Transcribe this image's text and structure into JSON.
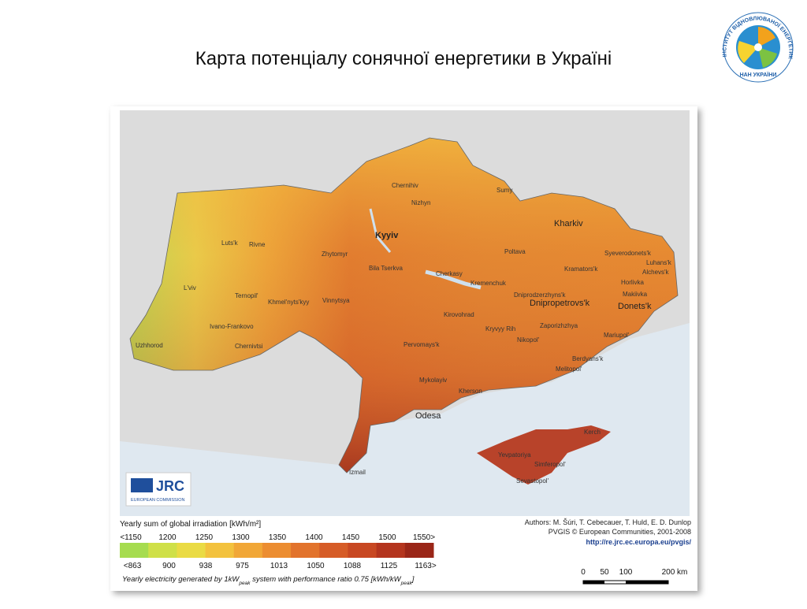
{
  "title": "Карта потенціалу сонячної енергетики в Україні",
  "logo": {
    "ring_text": "ІНСТИТУТ ВІДНОВЛЮВАНОЇ ЕНЕРГЕТИКИ",
    "bottom_text": "НАН УКРАЇНИ"
  },
  "map": {
    "capital": "Kyyiv",
    "major_cities": [
      "Kharkiv",
      "Dnipropetrovs'k",
      "Donets'k",
      "Odesa"
    ],
    "cities": [
      "Chernihiv",
      "Nizhyn",
      "Sumy",
      "Luts'k",
      "Rivne",
      "Zhytomyr",
      "Bila Tserkva",
      "Poltava",
      "Syeverodonets'k",
      "Luhans'k",
      "Alchevs'k",
      "Kramators'k",
      "Horlivka",
      "Makiivka",
      "L'viv",
      "Ternopil'",
      "Khmel'nyts'kyy",
      "Vinnytsya",
      "Cherkasy",
      "Kremenchuk",
      "Dniprodzerzhyns'k",
      "Ivano-Frankovo",
      "Kirovohrad",
      "Kryvyy Rih",
      "Zaporizhzhya",
      "Uzhhorod",
      "Chernivtsi",
      "Nikopol'",
      "Pervomays'k",
      "Mariupol'",
      "Berdyans'k",
      "Melitopol'",
      "Mykolayiv",
      "Kherson",
      "Kerch",
      "Yevpatoriya",
      "Simferopol'",
      "Sevastopol'",
      "Izmail"
    ],
    "badge": {
      "name": "JRC",
      "sub": "EUROPEAN COMMISSION"
    }
  },
  "legend": {
    "title": "Yearly sum of global irradiation [kWh/m²]",
    "irradiation_labels": [
      "<1150",
      "1200",
      "1250",
      "1300",
      "1350",
      "1400",
      "1450",
      "1500",
      "1550>"
    ],
    "electricity_labels": [
      "<863",
      "900",
      "938",
      "975",
      "1013",
      "1050",
      "1088",
      "1125",
      "1163>"
    ],
    "subtitle_parts": [
      "Yearly electricity generated by 1kW",
      "peak",
      " system with performance ratio 0.75 [kWh/kW",
      "peak",
      "]"
    ]
  },
  "credits": [
    "Authors: M. Šúri, T. Cebecauer, T. Huld, E. D. Dunlop",
    "PVGIS © European Communities, 2001-2008",
    "http://re.jrc.ec.europa.eu/pvgis/"
  ],
  "scale": [
    "0",
    "50",
    "100",
    "200 km"
  ]
}
